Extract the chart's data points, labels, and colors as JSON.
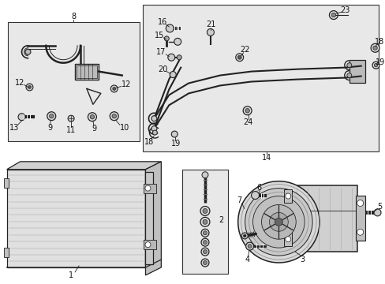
{
  "bg_color": "#ffffff",
  "box_bg": "#e8e8e8",
  "box_border": "#333333",
  "fig_width": 4.89,
  "fig_height": 3.6,
  "dpi": 100,
  "line_color": "#222222",
  "label_fontsize": 7.0
}
